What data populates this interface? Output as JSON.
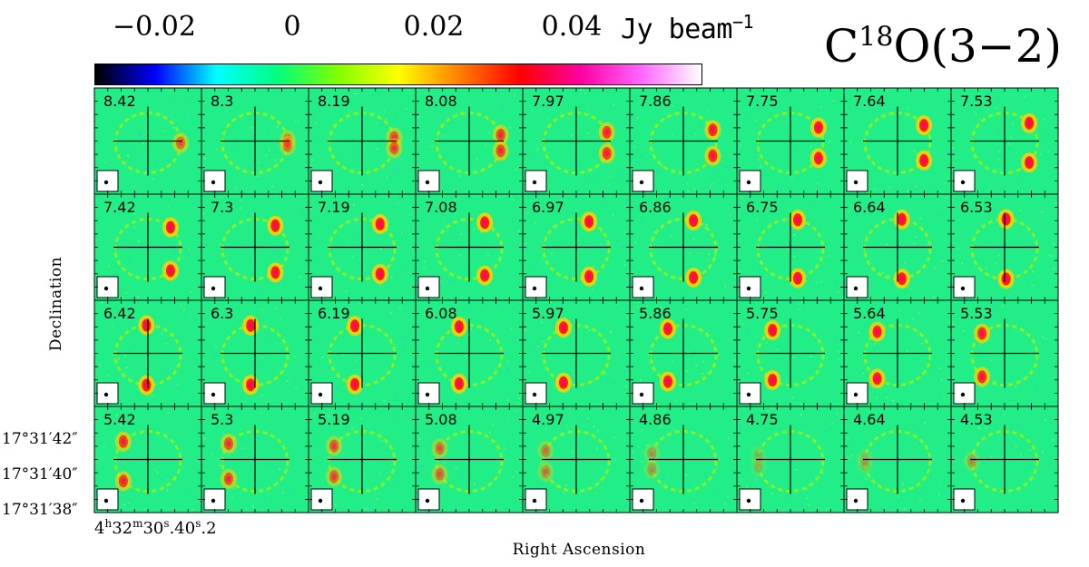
{
  "colorbar": {
    "tick_labels": [
      "−0.02",
      "0",
      "0.02",
      "0.04"
    ],
    "tick_values": [
      -0.02,
      0,
      0.02,
      0.04
    ],
    "range": [
      -0.04,
      0.06
    ],
    "unit_text": "Jy beam",
    "unit_exponent": "−1",
    "colors": [
      "#000000",
      "#0000ff",
      "#00ffff",
      "#00ff7f",
      "#7fff00",
      "#ffff00",
      "#ff8000",
      "#ff0000",
      "#ff00a0",
      "#ff66ff",
      "#ffffff"
    ]
  },
  "line_title": {
    "prefix": "C",
    "superscript": "18",
    "suffix": "O(3−2)"
  },
  "axes": {
    "ylabel": "Declination",
    "xlabel": "Right Ascension",
    "dec_ticks": [
      "17°31′42″",
      "17°31′40″",
      "17°31′38″"
    ],
    "ra_tick": {
      "h": "4",
      "m": "32",
      "s1": "30",
      "s1_frac": ".40",
      "s2_frac": ".2"
    }
  },
  "chart_data": {
    "type": "heatmap",
    "description_kind": "channel_maps",
    "rows": 4,
    "cols": 9,
    "velocity_labels": [
      "8.42",
      "8.3",
      "8.19",
      "8.08",
      "7.97",
      "7.86",
      "7.75",
      "7.64",
      "7.53",
      "7.42",
      "7.3",
      "7.19",
      "7.08",
      "6.97",
      "6.86",
      "6.75",
      "6.64",
      "6.53",
      "6.42",
      "6.3",
      "6.19",
      "6.08",
      "5.97",
      "5.86",
      "5.75",
      "5.64",
      "5.53",
      "5.42",
      "5.3",
      "5.19",
      "5.08",
      "4.97",
      "4.86",
      "4.75",
      "4.64",
      "4.53"
    ],
    "background_level": 0.0,
    "colors": {
      "background": "#22ee88",
      "ring": "#a8f000",
      "peak_mid": "#ffd000",
      "peak_high": "#ff2000",
      "peak_max": "#ff0080",
      "crosshair": "#000000",
      "beam_box": "#ffffff"
    }
  }
}
